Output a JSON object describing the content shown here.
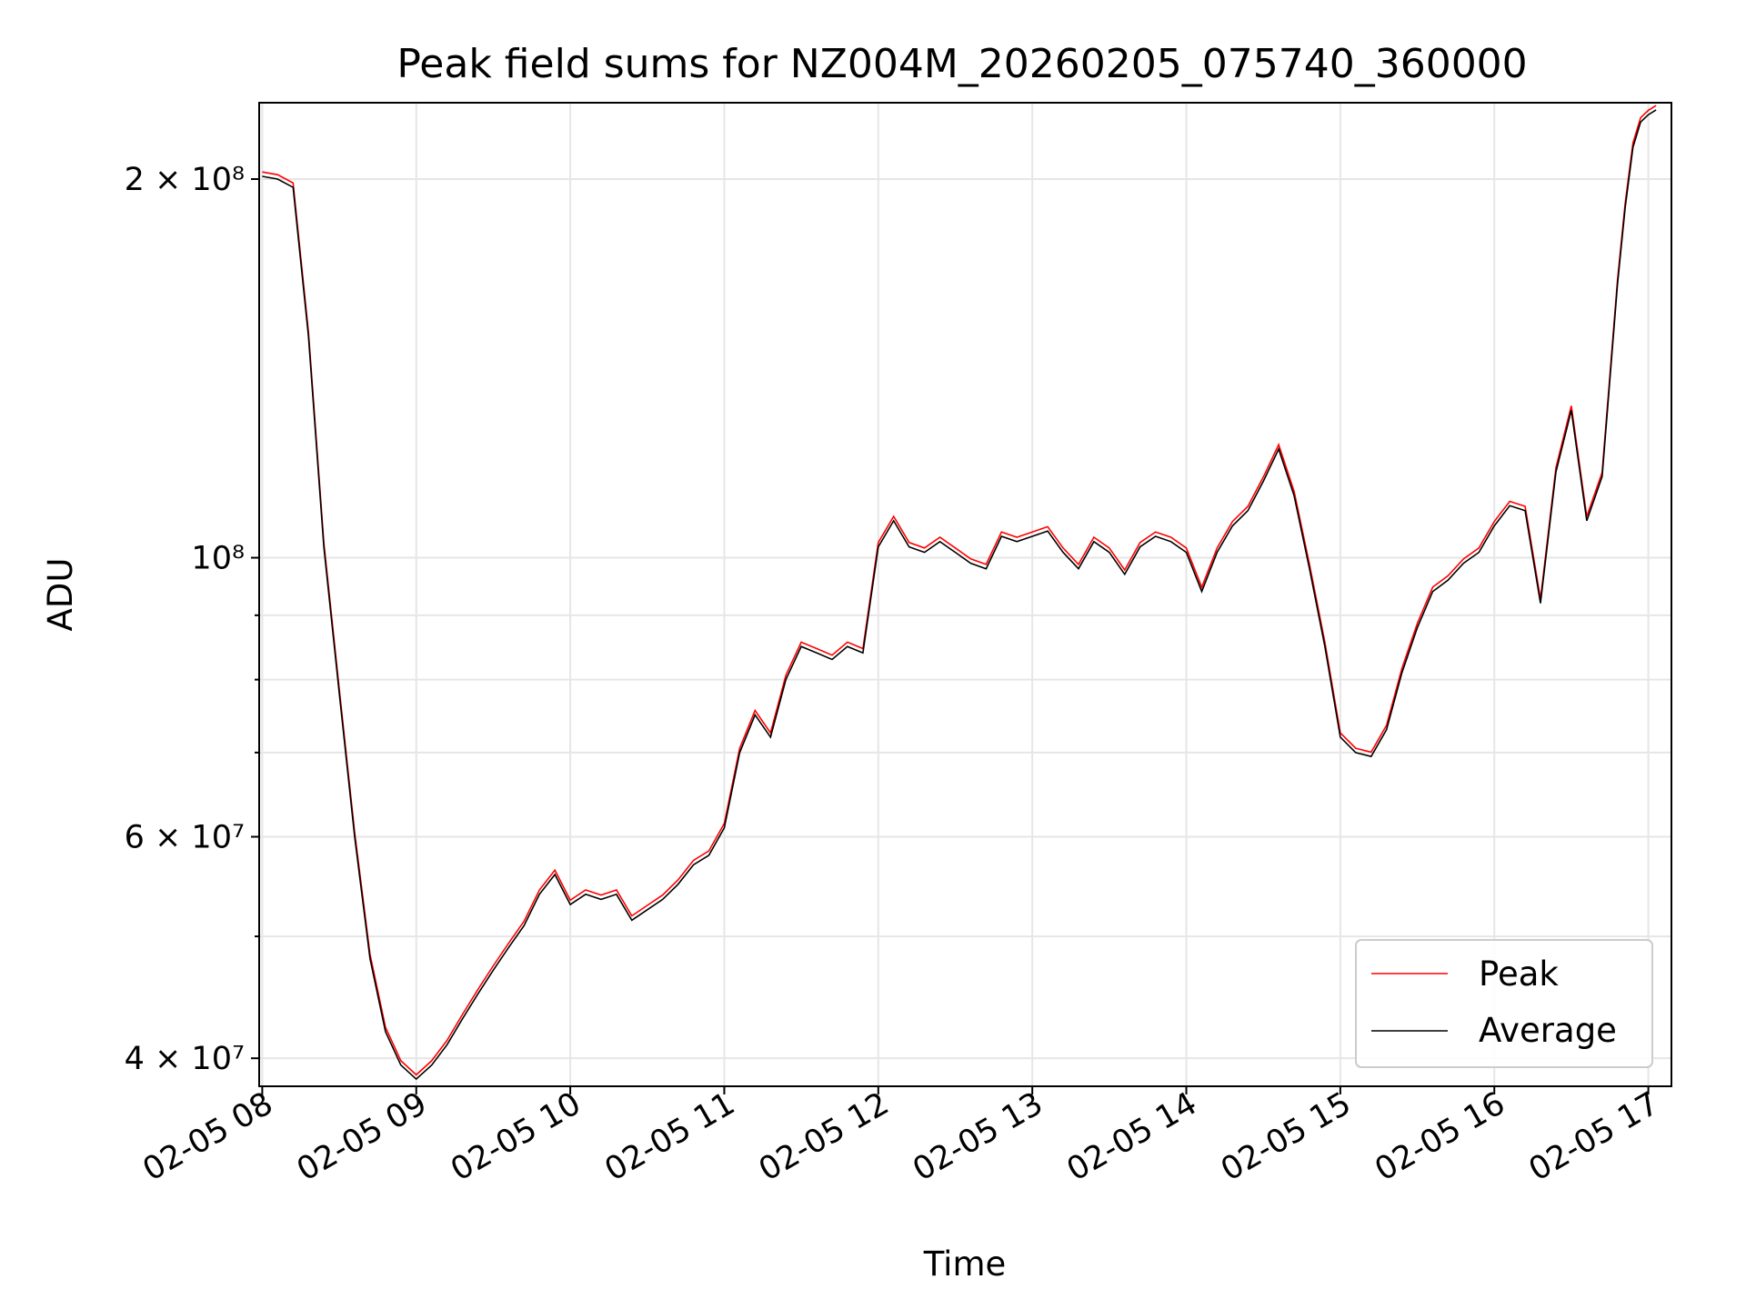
{
  "chart_data": {
    "type": "line",
    "title": "Peak field sums for NZ004M_20260205_075740_360000",
    "xlabel": "Time",
    "ylabel": "ADU",
    "x_axis": {
      "unit": "hours on 2026-02-05",
      "range": [
        7.98,
        17.15
      ],
      "ticks": [
        8,
        9,
        10,
        11,
        12,
        13,
        14,
        15,
        16,
        17
      ],
      "tick_labels": [
        "02-05 08",
        "02-05 09",
        "02-05 10",
        "02-05 11",
        "02-05 12",
        "02-05 13",
        "02-05 14",
        "02-05 15",
        "02-05 16",
        "02-05 17"
      ]
    },
    "y_axis": {
      "scale": "log",
      "range": [
        38000000,
        230000000
      ],
      "major_ticks": [
        40000000,
        60000000,
        100000000,
        200000000
      ],
      "major_tick_labels": [
        "4 × 10⁷",
        "6 × 10⁷",
        "10⁸",
        "2 × 10⁸"
      ],
      "minor_ticks": [
        50000000,
        70000000,
        80000000,
        90000000
      ]
    },
    "grid": true,
    "legend": {
      "placement": "lower-right",
      "entries": [
        "Peak",
        "Average"
      ]
    },
    "series": [
      {
        "name": "Peak",
        "color": "#ff0000"
      },
      {
        "name": "Average",
        "color": "#000000"
      }
    ],
    "x": [
      8.0,
      8.1,
      8.2,
      8.3,
      8.4,
      8.5,
      8.6,
      8.7,
      8.8,
      8.9,
      9.0,
      9.1,
      9.2,
      9.3,
      9.4,
      9.5,
      9.6,
      9.7,
      9.8,
      9.9,
      10.0,
      10.1,
      10.2,
      10.3,
      10.4,
      10.5,
      10.6,
      10.7,
      10.8,
      10.9,
      11.0,
      11.1,
      11.2,
      11.3,
      11.4,
      11.5,
      11.6,
      11.7,
      11.8,
      11.9,
      12.0,
      12.1,
      12.2,
      12.3,
      12.4,
      12.5,
      12.6,
      12.7,
      12.8,
      12.9,
      13.0,
      13.1,
      13.2,
      13.3,
      13.4,
      13.5,
      13.6,
      13.7,
      13.8,
      13.9,
      14.0,
      14.1,
      14.2,
      14.3,
      14.4,
      14.5,
      14.6,
      14.7,
      14.8,
      14.9,
      15.0,
      15.1,
      15.2,
      15.3,
      15.4,
      15.5,
      15.6,
      15.7,
      15.8,
      15.9,
      16.0,
      16.1,
      16.2,
      16.3,
      16.4,
      16.5,
      16.6,
      16.7,
      16.8,
      16.85,
      16.9,
      16.95,
      17.0,
      17.05
    ],
    "y_average": [
      201000000,
      200000000,
      197000000,
      150000000,
      102000000,
      78000000,
      60000000,
      48000000,
      42000000,
      39500000,
      38500000,
      39500000,
      41000000,
      43000000,
      45000000,
      47000000,
      49000000,
      51000000,
      54000000,
      56000000,
      53000000,
      54000000,
      53500000,
      54000000,
      51500000,
      52500000,
      53500000,
      55000000,
      57000000,
      58000000,
      61000000,
      70000000,
      75000000,
      72000000,
      80000000,
      85000000,
      84000000,
      83000000,
      85000000,
      84000000,
      102000000,
      107000000,
      102000000,
      101000000,
      103000000,
      101000000,
      99000000,
      98000000,
      104000000,
      103000000,
      104000000,
      105000000,
      101000000,
      98000000,
      103000000,
      101000000,
      97000000,
      102000000,
      104000000,
      103000000,
      101000000,
      94000000,
      101000000,
      106000000,
      109000000,
      115000000,
      122000000,
      112000000,
      98000000,
      85000000,
      72000000,
      70000000,
      69500000,
      73000000,
      81000000,
      88000000,
      94000000,
      96000000,
      99000000,
      101000000,
      106000000,
      110000000,
      109000000,
      92000000,
      117000000,
      131000000,
      107000000,
      116000000,
      165000000,
      190000000,
      212000000,
      222000000,
      225000000,
      227000000
    ],
    "y_peak_offset_fraction": 0.008
  }
}
